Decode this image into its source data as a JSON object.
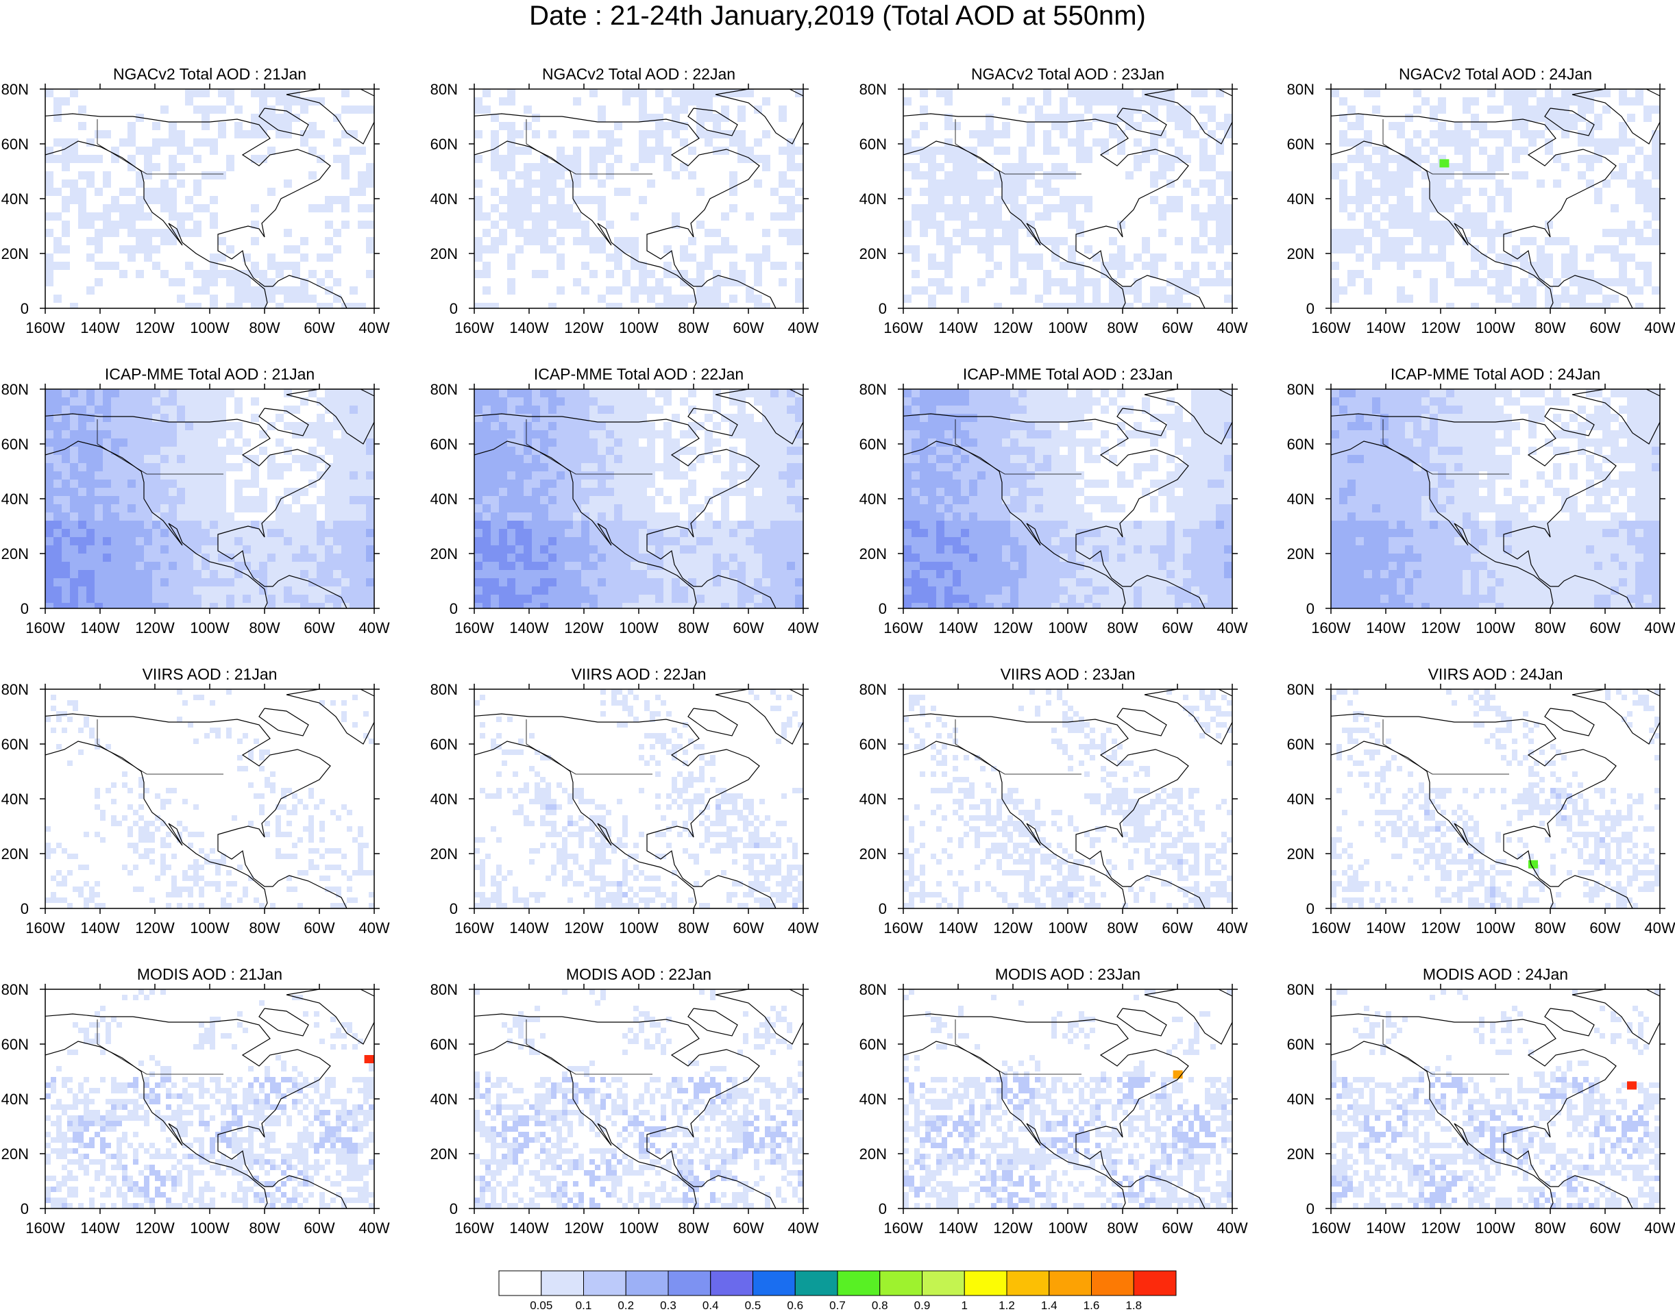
{
  "title": "Date : 21-24th January,2019 (Total AOD at 550nm)",
  "panels": [
    {
      "title": "NGACv2 Total AOD : 21Jan",
      "intensity": 0.28,
      "hotspot": null
    },
    {
      "title": "NGACv2 Total AOD : 22Jan",
      "intensity": 0.3,
      "hotspot": null
    },
    {
      "title": "NGACv2 Total AOD : 23Jan",
      "intensity": 0.33,
      "hotspot": null
    },
    {
      "title": "NGACv2 Total AOD : 24Jan",
      "intensity": 0.36,
      "hotspot": "green"
    },
    {
      "title": "ICAP-MME Total AOD : 21Jan",
      "intensity": 0.6,
      "hotspot": null
    },
    {
      "title": "ICAP-MME Total AOD : 22Jan",
      "intensity": 0.62,
      "hotspot": null
    },
    {
      "title": "ICAP-MME Total AOD : 23Jan",
      "intensity": 0.6,
      "hotspot": null
    },
    {
      "title": "ICAP-MME Total AOD : 24Jan",
      "intensity": 0.5,
      "hotspot": null
    },
    {
      "title": "VIIRS AOD : 21Jan",
      "intensity": 0.18,
      "hotspot": null
    },
    {
      "title": "VIIRS AOD : 22Jan",
      "intensity": 0.3,
      "hotspot": null
    },
    {
      "title": "VIIRS AOD : 23Jan",
      "intensity": 0.3,
      "hotspot": null
    },
    {
      "title": "VIIRS AOD : 24Jan",
      "intensity": 0.32,
      "hotspot": "green"
    },
    {
      "title": "MODIS AOD : 21Jan",
      "intensity": 0.4,
      "hotspot": "red"
    },
    {
      "title": "MODIS AOD : 22Jan",
      "intensity": 0.42,
      "hotspot": null
    },
    {
      "title": "MODIS AOD : 23Jan",
      "intensity": 0.42,
      "hotspot": "orange"
    },
    {
      "title": "MODIS AOD : 24Jan",
      "intensity": 0.4,
      "hotspot": "red"
    }
  ],
  "lat_ticks": [
    "80N",
    "60N",
    "40N",
    "20N",
    "0"
  ],
  "lon_ticks": [
    "160W",
    "140W",
    "120W",
    "100W",
    "80W",
    "60W",
    "40W"
  ],
  "colorbar": {
    "colors": [
      "#ffffff",
      "#dae3fb",
      "#bccafa",
      "#9cb0f6",
      "#7d92f2",
      "#6a6aec",
      "#1a6ef0",
      "#0c9b98",
      "#58f024",
      "#9ef22e",
      "#c4f450",
      "#fcfc04",
      "#fcbf04",
      "#fca204",
      "#fc7a04",
      "#fc2a0c"
    ],
    "labels": [
      "0.05",
      "0.1",
      "0.2",
      "0.3",
      "0.4",
      "0.5",
      "0.6",
      "0.7",
      "0.8",
      "0.9",
      "1",
      "1.2",
      "1.4",
      "1.6",
      "1.8"
    ]
  },
  "chart_data": {
    "type": "heatmap",
    "title": "Date : 21-24th January,2019 (Total AOD at 550nm)",
    "x_ticks": [
      "160W",
      "140W",
      "120W",
      "100W",
      "80W",
      "60W",
      "40W"
    ],
    "y_ticks": [
      "0",
      "20N",
      "40N",
      "60N",
      "80N"
    ],
    "xlim": [
      -160,
      -40
    ],
    "ylim": [
      0,
      80
    ],
    "color_levels": [
      0.05,
      0.1,
      0.2,
      0.3,
      0.4,
      0.5,
      0.6,
      0.7,
      0.8,
      0.9,
      1,
      1.2,
      1.4,
      1.6,
      1.8
    ]
  }
}
